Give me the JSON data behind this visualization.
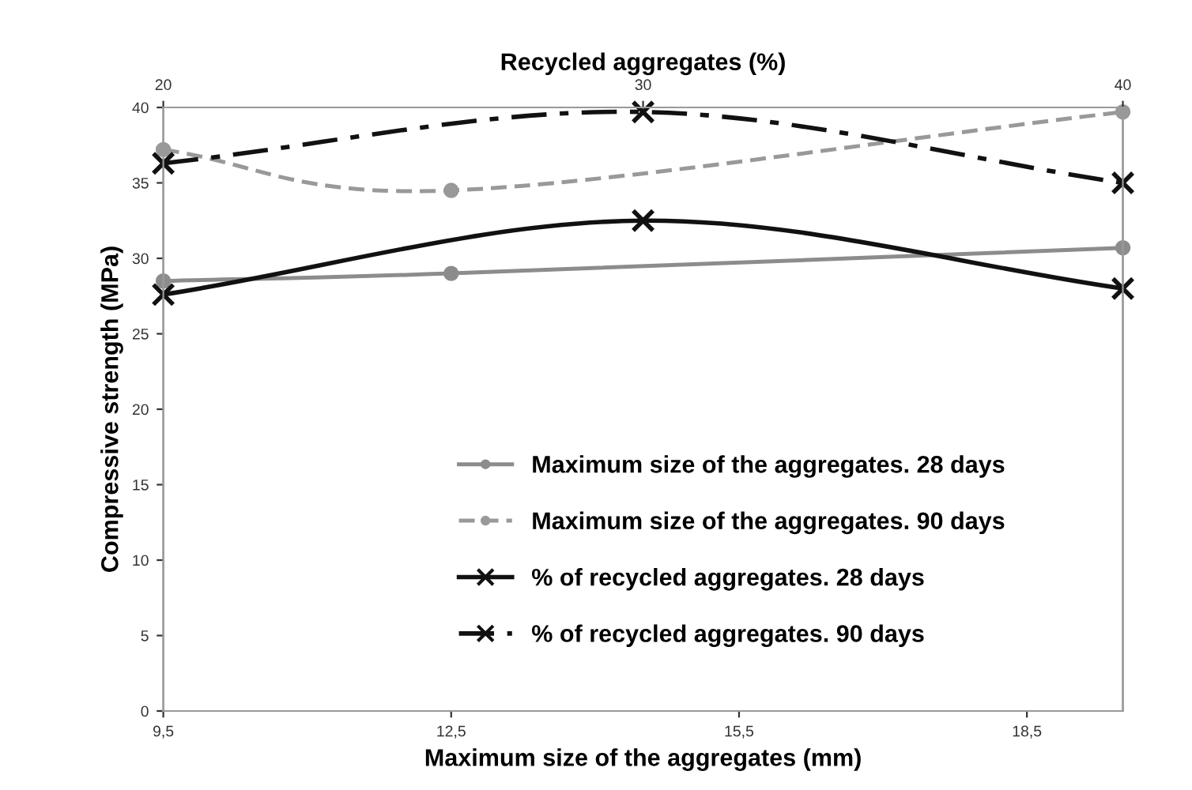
{
  "chart_data": {
    "type": "line",
    "xlabel": "Maximum size of the aggregates (mm)",
    "ylabel": "Compressive strength (MPa)",
    "x2label": "Recycled aggregates (%)",
    "xlim": [
      9.5,
      19.5
    ],
    "xticks": [
      {
        "value": 9.5,
        "label": "9,5"
      },
      {
        "value": 12.5,
        "label": "12,5"
      },
      {
        "value": 15.5,
        "label": "15,5"
      },
      {
        "value": 18.5,
        "label": "18,5"
      }
    ],
    "x2lim": [
      20,
      40
    ],
    "x2ticks": [
      20,
      30,
      40
    ],
    "ylim": [
      0,
      40
    ],
    "yticks": [
      0,
      5,
      10,
      15,
      20,
      25,
      30,
      35,
      40
    ],
    "grid": false,
    "legend": "lower right",
    "series": [
      {
        "name": "Maximum size of the aggregates. 28 days",
        "color": "#8c8c8c",
        "marker": "circle",
        "line_style": "solid",
        "x": [
          9.5,
          12.5,
          19.5
        ],
        "values": [
          28.5,
          29.0,
          30.7
        ]
      },
      {
        "name": "Maximum size of the aggregates. 90 days",
        "color": "#999999",
        "marker": "circle",
        "line_style": "dashed",
        "x": [
          9.5,
          12.5,
          19.5
        ],
        "values": [
          37.2,
          34.5,
          39.7
        ]
      },
      {
        "name": "% of recycled aggregates. 28 days",
        "color": "#111111",
        "marker": "cross",
        "line_style": "solid",
        "axis": "x2",
        "x": [
          20,
          30,
          40
        ],
        "values": [
          27.6,
          32.5,
          28.0
        ]
      },
      {
        "name": "% of recycled aggregates. 90 days",
        "color": "#111111",
        "marker": "cross",
        "line_style": "dashdot",
        "axis": "x2",
        "x": [
          20,
          30,
          40
        ],
        "values": [
          36.3,
          39.7,
          35.0
        ]
      }
    ]
  }
}
